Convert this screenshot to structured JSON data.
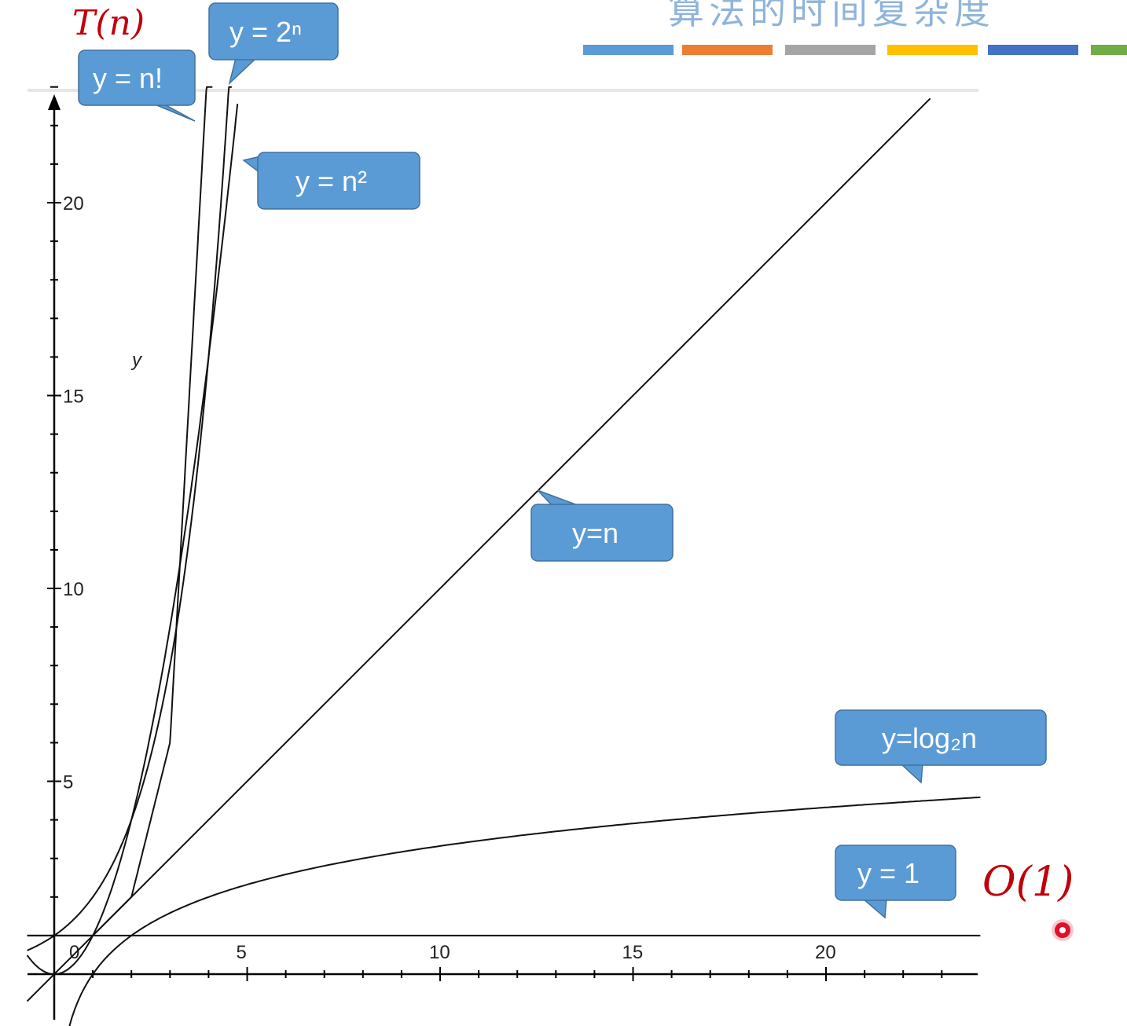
{
  "slide": {
    "title": "算法的时间复杂度",
    "color_bar": [
      "#5b9bd5",
      "#ed7d31",
      "#a5a5a5",
      "#ffc000",
      "#4472c4",
      "#70ad47"
    ]
  },
  "annotations": {
    "top_left": "T(n)",
    "bottom_right": "O(1)"
  },
  "callouts": [
    {
      "key": "fact",
      "label": "y = n!"
    },
    {
      "key": "exp",
      "label": "y = 2ⁿ"
    },
    {
      "key": "square",
      "label": "y = n²"
    },
    {
      "key": "linear",
      "label": "y=n"
    },
    {
      "key": "log",
      "label": "y=log₂n"
    },
    {
      "key": "const",
      "label": "y = 1"
    }
  ],
  "chart_data": {
    "type": "line",
    "ylabel": "y",
    "xlabel": "",
    "xlim": [
      -0.7,
      24
    ],
    "ylim": [
      -1,
      22.5
    ],
    "x_ticks": [
      0,
      5,
      10,
      15,
      20
    ],
    "x_tick_labels": [
      "0",
      "5",
      "10",
      "15",
      "20"
    ],
    "y_ticks": [
      5,
      10,
      15,
      20
    ],
    "y_tick_labels": [
      "5",
      "10",
      "15",
      "20"
    ],
    "grid": false,
    "series": [
      {
        "name": "y = n!",
        "function": "factorial",
        "x": [
          0,
          1,
          2,
          3,
          3.5,
          4
        ],
        "y": [
          1,
          1,
          2,
          6,
          11.6,
          24
        ]
      },
      {
        "name": "y = 2ⁿ",
        "function": "exp2",
        "x": [
          0,
          1,
          2,
          3,
          4,
          4.5
        ],
        "y": [
          1,
          2,
          4,
          8,
          16,
          22.6
        ]
      },
      {
        "name": "y = n²",
        "function": "square",
        "x": [
          0,
          1,
          2,
          3,
          4,
          4.7
        ],
        "y": [
          0,
          1,
          4,
          9,
          16,
          22.1
        ]
      },
      {
        "name": "y=n",
        "function": "linear",
        "x": [
          0,
          5,
          10,
          15,
          20,
          22.5
        ],
        "y": [
          0,
          5,
          10,
          15,
          20,
          22.5
        ]
      },
      {
        "name": "y=log₂n",
        "function": "log2",
        "x": [
          0.5,
          1,
          2,
          4,
          8,
          16,
          24
        ],
        "y": [
          -1,
          0,
          1,
          2,
          3,
          4,
          4.58
        ]
      },
      {
        "name": "y = 1",
        "function": "const",
        "x": [
          -0.7,
          24
        ],
        "y": [
          1,
          1
        ]
      }
    ]
  }
}
